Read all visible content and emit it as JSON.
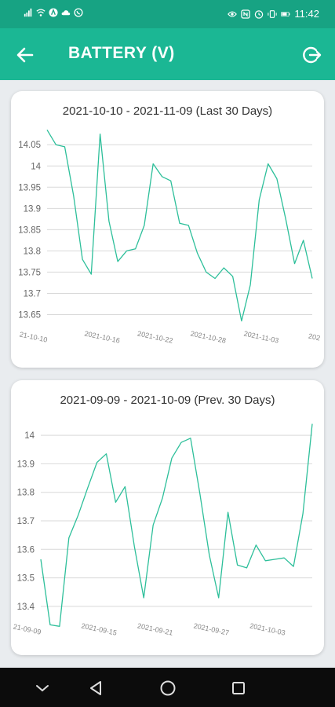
{
  "status_bar": {
    "time": "11:42",
    "left_icons": [
      "signal-icon",
      "wifi-icon",
      "alert-icon",
      "cloud-icon",
      "whatsapp-icon"
    ],
    "right_icons": [
      "eye-icon",
      "nfc-icon",
      "alarm-icon",
      "vibrate-icon",
      "battery-icon"
    ]
  },
  "app_bar": {
    "title": "BATTERY (V)",
    "back_icon": "arrow-left-icon",
    "logout_icon": "logout-icon"
  },
  "colors": {
    "accent": "#1bb794",
    "status_bar": "#17a383",
    "line": "#2dbf9a",
    "grid": "#d9d9d9"
  },
  "chart_data": [
    {
      "type": "line",
      "title": "2021-10-10 - 2021-11-09 (Last 30 Days)",
      "y_ticks": [
        "14.05",
        "14",
        "13.95",
        "13.9",
        "13.85",
        "13.8",
        "13.75",
        "13.7",
        "13.65"
      ],
      "x_tick_labels": [
        "21-10-10",
        "2021-10-16",
        "2021-10-22",
        "2021-10-28",
        "2021-11-03",
        "202"
      ],
      "ylim": [
        13.625,
        14.08
      ],
      "grid": true,
      "series": [
        {
          "values": [
            14.085,
            14.05,
            14.045,
            13.93,
            13.78,
            13.745,
            14.075,
            13.87,
            13.775,
            13.8,
            13.805,
            13.86,
            14.005,
            13.975,
            13.965,
            13.865,
            13.86,
            13.795,
            13.75,
            13.735,
            13.76,
            13.74,
            13.635,
            13.72,
            13.92,
            14.005,
            13.97,
            13.875,
            13.77,
            13.825,
            13.735
          ]
        }
      ]
    },
    {
      "type": "line",
      "title": "2021-09-09 - 2021-10-09 (Prev. 30 Days)",
      "y_ticks": [
        "14",
        "13.9",
        "13.8",
        "13.7",
        "13.6",
        "13.5",
        "13.4"
      ],
      "x_tick_labels": [
        "21-09-09",
        "2021-09-15",
        "2021-09-21",
        "2021-09-27",
        "2021-10-03"
      ],
      "ylim": [
        13.35,
        14.05
      ],
      "grid": true,
      "series": [
        {
          "values": [
            13.565,
            13.335,
            13.33,
            13.64,
            13.72,
            13.815,
            13.905,
            13.935,
            13.765,
            13.82,
            13.61,
            13.43,
            13.685,
            13.78,
            13.92,
            13.975,
            13.99,
            13.795,
            13.58,
            13.43,
            13.73,
            13.545,
            13.535,
            13.615,
            13.56,
            13.565,
            13.57,
            13.54,
            13.725,
            14.04
          ]
        }
      ]
    }
  ],
  "nav_bar": {
    "buttons": [
      "chevron-down-icon",
      "back-triangle-icon",
      "home-circle-icon",
      "recents-square-icon"
    ]
  }
}
